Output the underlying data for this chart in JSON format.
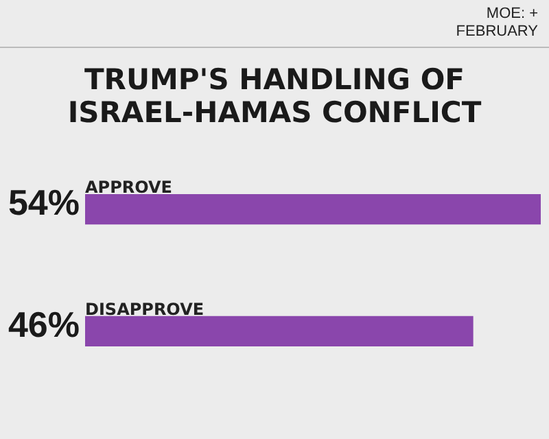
{
  "chart_data": {
    "type": "bar",
    "orientation": "horizontal",
    "title": "TRUMP'S HANDLING OF ISRAEL-HAMAS CONFLICT",
    "annotations": [
      "MOE: +",
      "FEBRUARY"
    ],
    "categories": [
      "APPROVE",
      "DISAPPROVE"
    ],
    "values": [
      54,
      46
    ],
    "value_labels": [
      "54%",
      "46%"
    ],
    "color": "#8a46ac"
  }
}
